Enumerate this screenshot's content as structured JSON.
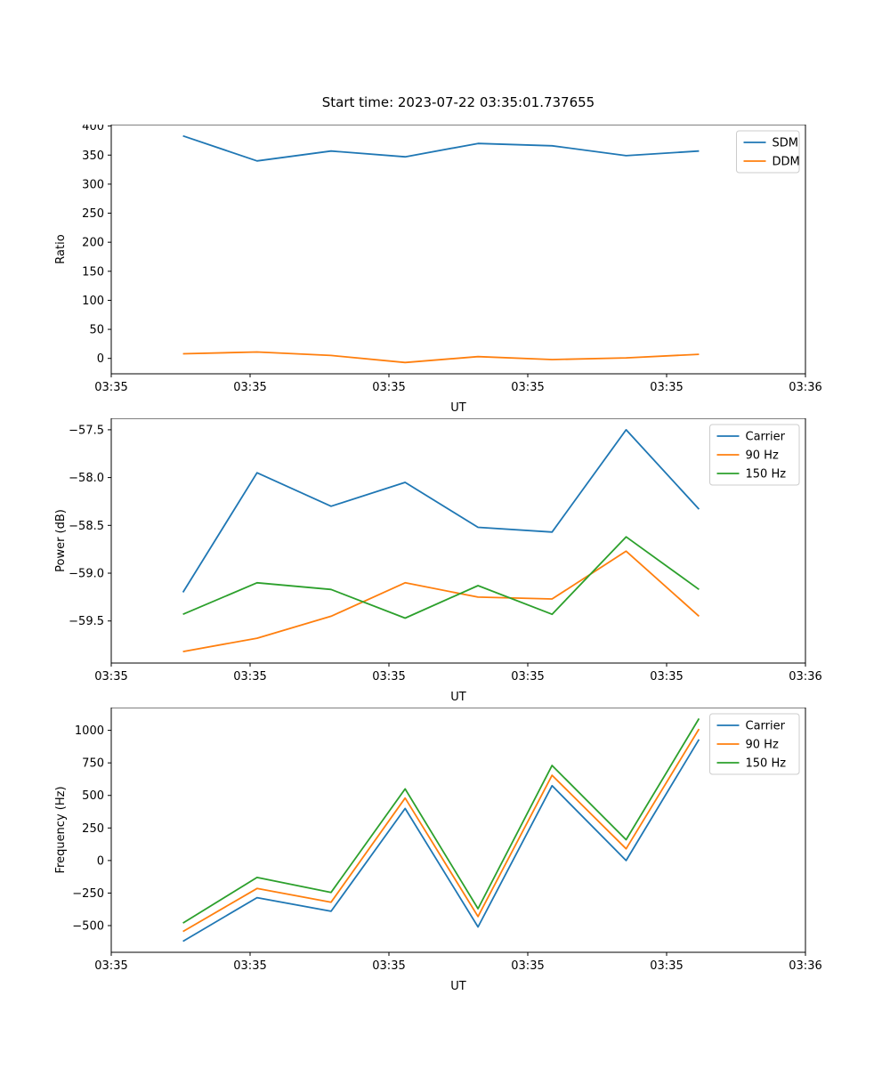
{
  "figure": {
    "title": "Start time: 2023-07-22 03:35:01.737655"
  },
  "colors": {
    "blue": "#1f77b4",
    "orange": "#ff7f0e",
    "green": "#2ca02c",
    "axis": "#000000",
    "legend_border": "#cccccc"
  },
  "chart_data": [
    {
      "name": "ratio",
      "type": "line",
      "title": "Start time: 2023-07-22 03:35:01.737655",
      "xlabel": "UT",
      "ylabel": "Ratio",
      "x_axis": {
        "range_seconds": [
          0,
          60
        ],
        "tick_seconds": [
          0,
          12,
          24,
          36,
          48,
          60
        ],
        "tick_labels": [
          "03:35",
          "03:35",
          "03:35",
          "03:35",
          "03:35",
          "03:36"
        ]
      },
      "x_seconds": [
        6.2,
        12.6,
        19.0,
        25.4,
        31.7,
        38.1,
        44.5,
        50.8
      ],
      "ylim": [
        -26.5,
        402.5
      ],
      "ytick_values": [
        0,
        50,
        100,
        150,
        200,
        250,
        300,
        350,
        400
      ],
      "ytick_labels": [
        "0",
        "50",
        "100",
        "150",
        "200",
        "250",
        "300",
        "350",
        "400"
      ],
      "legend_position": "upper right",
      "grid": false,
      "series": [
        {
          "name": "SDM",
          "color": "#1f77b4",
          "values": [
            383,
            340,
            357,
            347,
            370,
            366,
            349,
            357
          ]
        },
        {
          "name": "DDM",
          "color": "#ff7f0e",
          "values": [
            8,
            11,
            5,
            -7,
            3,
            -2,
            1,
            7
          ]
        }
      ]
    },
    {
      "name": "power",
      "type": "line",
      "xlabel": "UT",
      "ylabel": "Power (dB)",
      "x_axis": {
        "range_seconds": [
          0,
          60
        ],
        "tick_seconds": [
          0,
          12,
          24,
          36,
          48,
          60
        ],
        "tick_labels": [
          "03:35",
          "03:35",
          "03:35",
          "03:35",
          "03:35",
          "03:36"
        ]
      },
      "x_seconds": [
        6.2,
        12.6,
        19.0,
        25.4,
        31.7,
        38.1,
        44.5,
        50.8
      ],
      "ylim": [
        -59.94,
        -57.38
      ],
      "ytick_values": [
        -57.5,
        -58.0,
        -58.5,
        -59.0,
        -59.5
      ],
      "ytick_labels": [
        "−57.5",
        "−58.0",
        "−58.5",
        "−59.0",
        "−59.5"
      ],
      "legend_position": "upper right",
      "grid": false,
      "series": [
        {
          "name": "Carrier",
          "color": "#1f77b4",
          "values": [
            -59.2,
            -57.95,
            -58.3,
            -58.05,
            -58.52,
            -58.57,
            -57.5,
            -58.33
          ]
        },
        {
          "name": "90 Hz",
          "color": "#ff7f0e",
          "values": [
            -59.82,
            -59.68,
            -59.45,
            -59.1,
            -59.25,
            -59.27,
            -58.77,
            -59.45
          ]
        },
        {
          "name": "150 Hz",
          "color": "#2ca02c",
          "values": [
            -59.43,
            -59.1,
            -59.17,
            -59.47,
            -59.13,
            -59.43,
            -58.62,
            -59.17
          ]
        }
      ]
    },
    {
      "name": "frequency",
      "type": "line",
      "xlabel": "UT",
      "ylabel": "Frequency (Hz)",
      "x_axis": {
        "range_seconds": [
          0,
          60
        ],
        "tick_seconds": [
          0,
          12,
          24,
          36,
          48,
          60
        ],
        "tick_labels": [
          "03:35",
          "03:35",
          "03:35",
          "03:35",
          "03:35",
          "03:36"
        ]
      },
      "x_seconds": [
        6.2,
        12.6,
        19.0,
        25.4,
        31.7,
        38.1,
        44.5,
        50.8
      ],
      "ylim": [
        -705,
        1175
      ],
      "ytick_values": [
        -500,
        -250,
        0,
        250,
        500,
        750,
        1000
      ],
      "ytick_labels": [
        "−500",
        "−250",
        "0",
        "250",
        "500",
        "750",
        "1000"
      ],
      "legend_position": "upper right",
      "grid": false,
      "series": [
        {
          "name": "Carrier",
          "color": "#1f77b4",
          "values": [
            -620,
            -285,
            -390,
            400,
            -510,
            575,
            0,
            930
          ]
        },
        {
          "name": "90 Hz",
          "color": "#ff7f0e",
          "values": [
            -545,
            -215,
            -320,
            480,
            -430,
            655,
            90,
            1010
          ]
        },
        {
          "name": "150 Hz",
          "color": "#2ca02c",
          "values": [
            -480,
            -130,
            -245,
            550,
            -370,
            730,
            160,
            1090
          ]
        }
      ]
    }
  ]
}
